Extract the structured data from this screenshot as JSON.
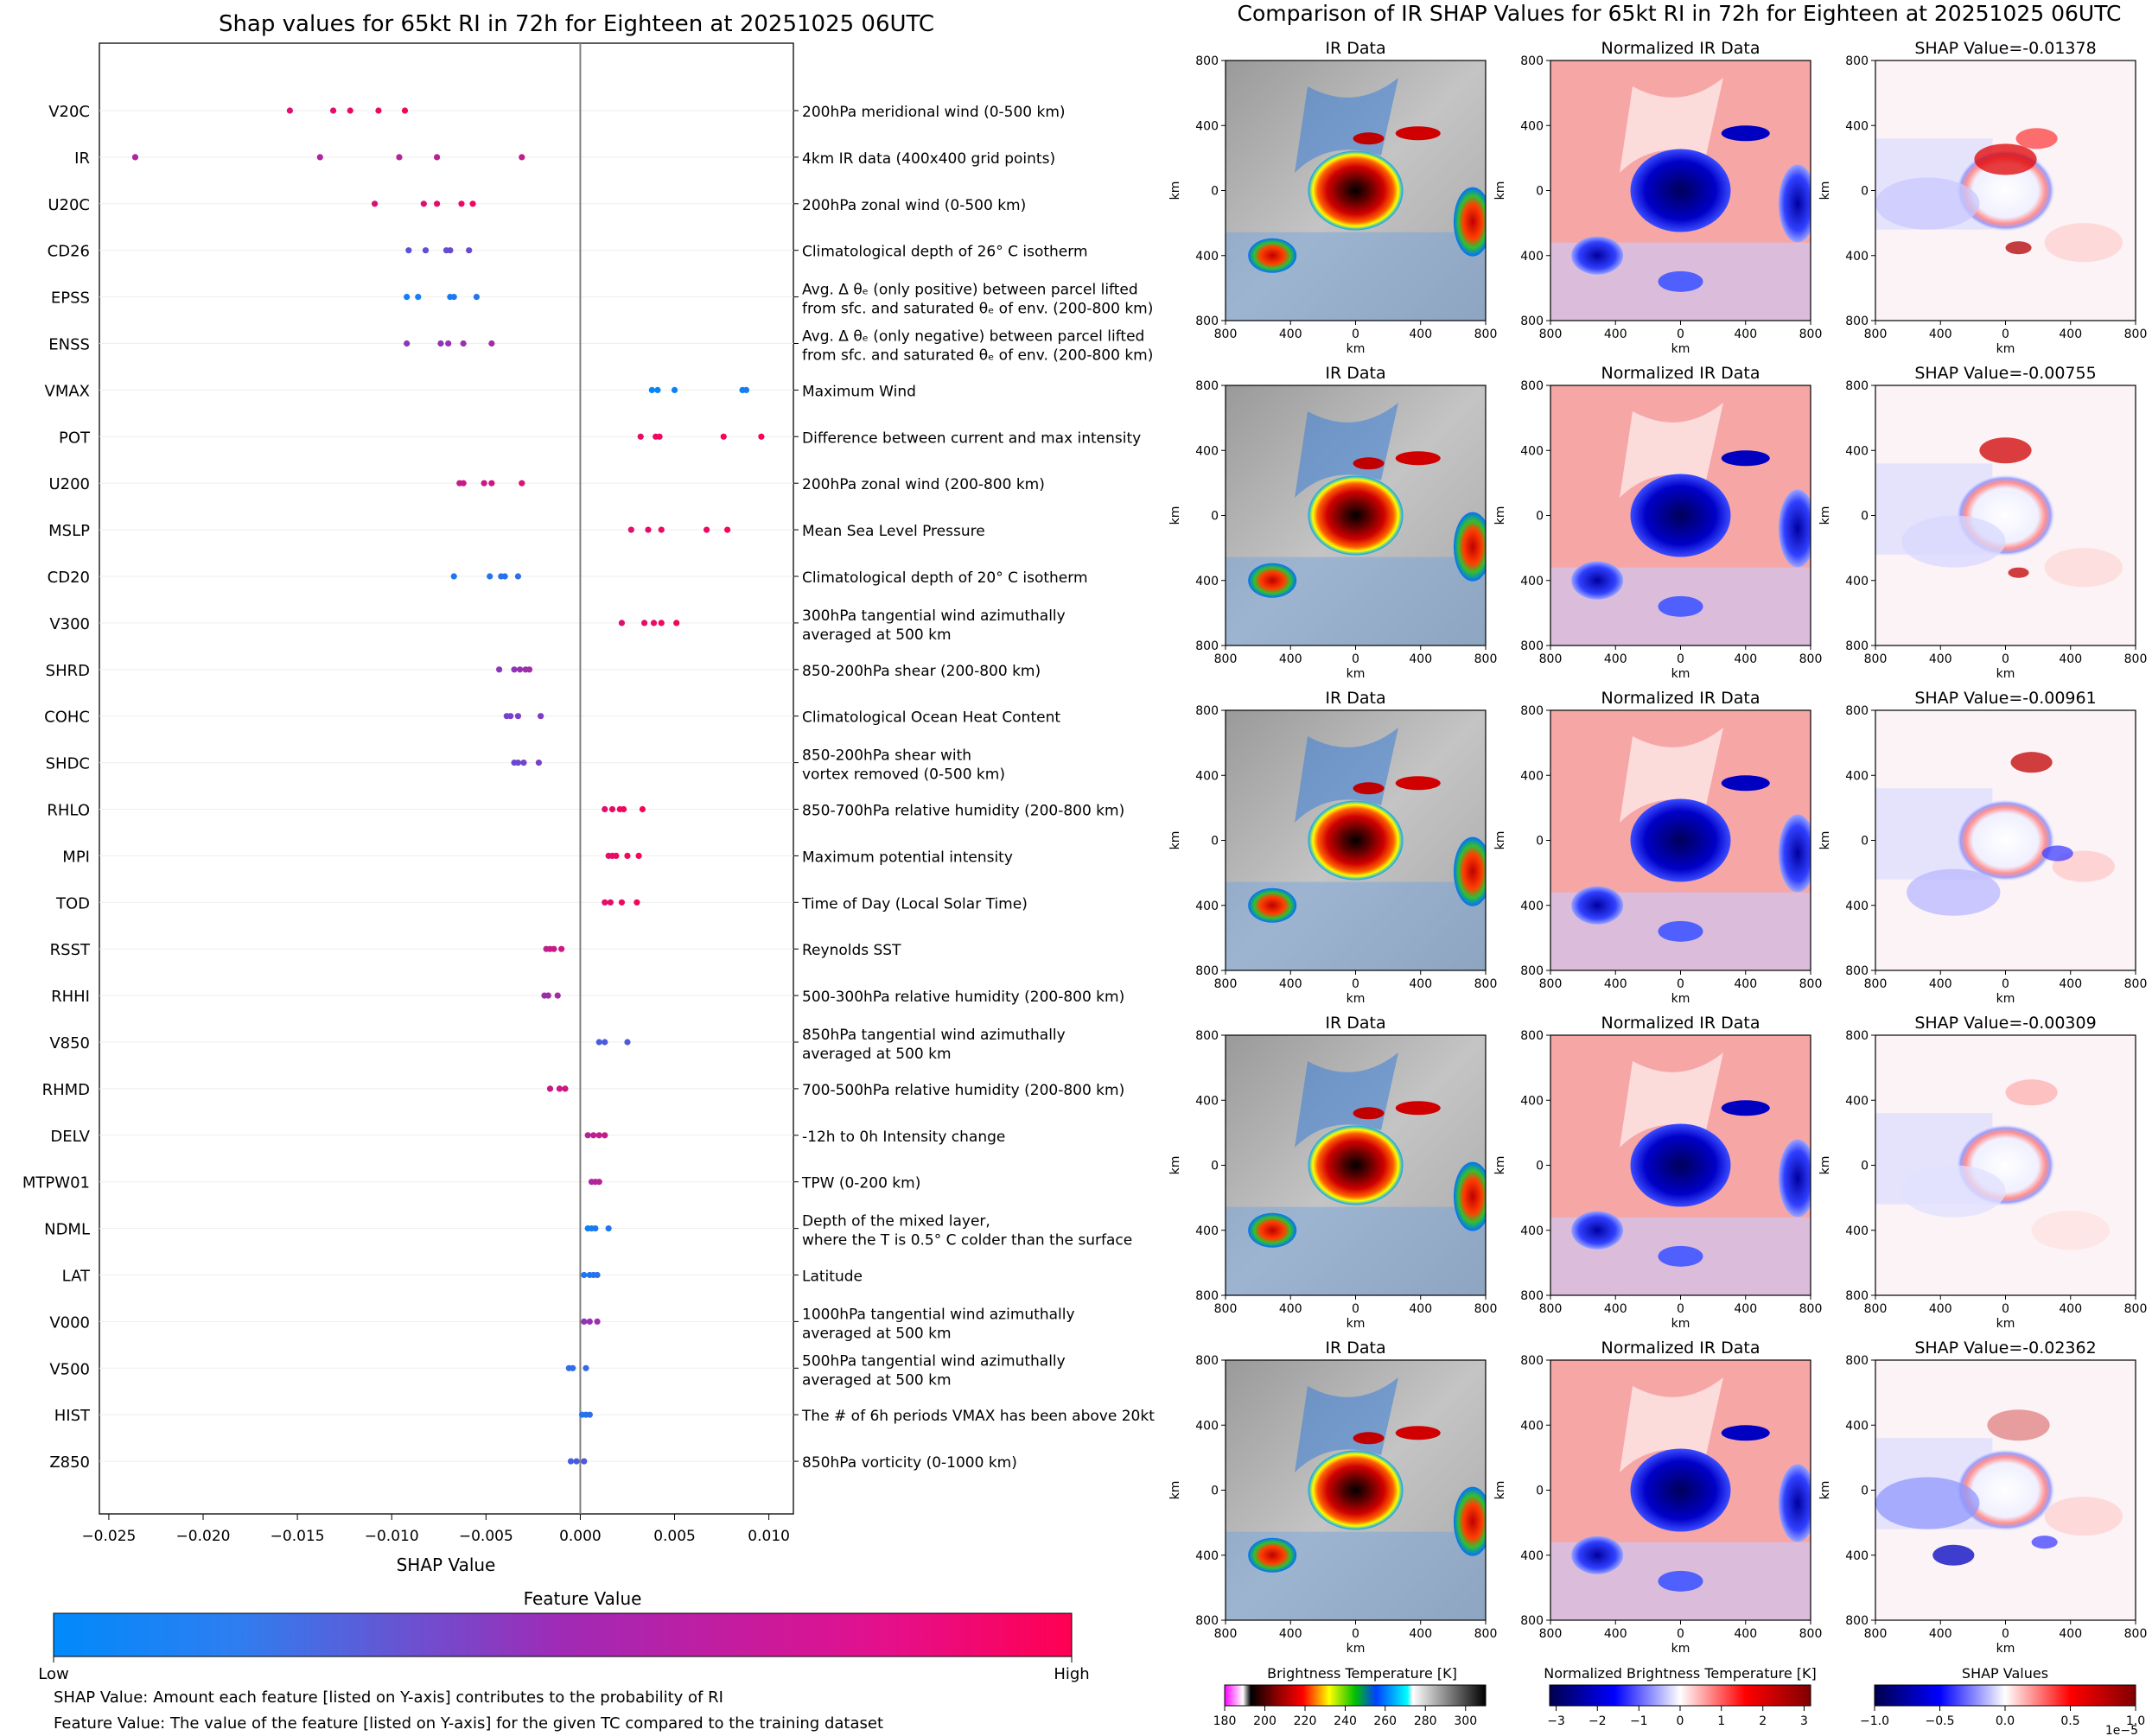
{
  "left_panel": {
    "title": "Shap values for 65kt RI in 72h for Eighteen at 20251025 06UTC",
    "xlabel": "SHAP Value",
    "colorbar_title": "Feature Value",
    "colorbar_low": "Low",
    "colorbar_high": "High",
    "note_shap": "SHAP Value: Amount each feature [listed on Y-axis] contributes to the probability of RI",
    "note_feature": "Feature Value: The value of the feature [listed on Y-axis] for the given TC compared to the training dataset",
    "colors": {
      "low": "#008afb",
      "mid": "#7b3ec9",
      "high": "#ff0052"
    }
  },
  "right_panel": {
    "title": "Comparison of IR SHAP Values for 65kt RI in 72h for Eighteen at 20251025 06UTC",
    "col_titles": [
      "IR Data",
      "Normalized IR Data"
    ],
    "rows": [
      {
        "shap_title": "SHAP Value=-0.01378"
      },
      {
        "shap_title": "SHAP Value=-0.00755"
      },
      {
        "shap_title": "SHAP Value=-0.00961"
      },
      {
        "shap_title": "SHAP Value=-0.00309"
      },
      {
        "shap_title": "SHAP Value=-0.02362"
      }
    ],
    "axis_label": "km",
    "ticks": [
      "800",
      "400",
      "0",
      "400",
      "800"
    ],
    "colorbars": [
      {
        "title": "Brightness Temperature [K]",
        "ticks": [
          "180",
          "200",
          "220",
          "240",
          "260",
          "280",
          "300"
        ]
      },
      {
        "title": "Normalized Brightness Temperature [K]",
        "ticks": [
          "−3",
          "−2",
          "−1",
          "0",
          "1",
          "2",
          "3"
        ]
      },
      {
        "title": "SHAP Values",
        "ticks": [
          "−1.0",
          "−0.5",
          "0.0",
          "0.5",
          "1.0"
        ],
        "offset": "1e−5"
      }
    ]
  },
  "chart_data": [
    {
      "type": "scatter",
      "title": "Shap values for 65kt RI in 72h for Eighteen at 20251025 06UTC",
      "xlabel": "SHAP Value",
      "xlim": [
        -0.0255,
        0.0113
      ],
      "xticks": [
        -0.025,
        -0.02,
        -0.015,
        -0.01,
        -0.005,
        0.0,
        0.005,
        0.01
      ],
      "xtick_labels": [
        "−0.025",
        "−0.020",
        "−0.015",
        "−0.010",
        "−0.005",
        "0.000",
        "0.005",
        "0.010"
      ],
      "features": [
        {
          "name": "V20C",
          "desc": [
            "200hPa meridional wind (0-500 km)"
          ],
          "color": 0.92,
          "values": [
            -0.0154,
            -0.0131,
            -0.0122,
            -0.0107,
            -0.0093
          ]
        },
        {
          "name": "IR",
          "desc": [
            "4km IR data (400x400 grid points)"
          ],
          "color": 0.72,
          "values": [
            -0.0236,
            -0.0138,
            -0.0096,
            -0.0076,
            -0.0031
          ]
        },
        {
          "name": "U20C",
          "desc": [
            "200hPa zonal wind (0-500 km)"
          ],
          "color": 0.9,
          "values": [
            -0.0109,
            -0.0083,
            -0.0076,
            -0.0063,
            -0.0057
          ]
        },
        {
          "name": "CD26",
          "desc": [
            "Climatological depth of 26° C isotherm"
          ],
          "color": 0.4,
          "values": [
            -0.0091,
            -0.0082,
            -0.0071,
            -0.0069,
            -0.0059
          ]
        },
        {
          "name": "EPSS",
          "desc": [
            "Avg. Δ θₑ (only positive) between parcel lifted",
            "from sfc. and saturated θₑ of env. (200-800 km)"
          ],
          "color": 0.1,
          "values": [
            -0.0092,
            -0.0086,
            -0.0069,
            -0.0067,
            -0.0055
          ]
        },
        {
          "name": "ENSS",
          "desc": [
            "Avg. Δ θₑ (only negative) between parcel lifted",
            "from sfc. and saturated θₑ of env. (200-800 km)"
          ],
          "color": 0.6,
          "values": [
            -0.0092,
            -0.0074,
            -0.007,
            -0.0062,
            -0.0047
          ]
        },
        {
          "name": "VMAX",
          "desc": [
            "Maximum Wind"
          ],
          "color": 0.05,
          "values": [
            0.0038,
            0.0041,
            0.005,
            0.0086,
            0.0088
          ]
        },
        {
          "name": "POT",
          "desc": [
            "Difference between current and max intensity"
          ],
          "color": 0.95,
          "values": [
            0.0032,
            0.004,
            0.0042,
            0.0076,
            0.0096
          ]
        },
        {
          "name": "U200",
          "desc": [
            "200hPa zonal wind (200-800 km)"
          ],
          "color": 0.8,
          "values": [
            -0.0064,
            -0.0062,
            -0.0051,
            -0.0047,
            -0.0031
          ]
        },
        {
          "name": "MSLP",
          "desc": [
            "Mean Sea Level Pressure"
          ],
          "color": 0.93,
          "values": [
            0.0027,
            0.0036,
            0.0043,
            0.0067,
            0.0078
          ]
        },
        {
          "name": "CD20",
          "desc": [
            "Climatological depth of 20° C isotherm"
          ],
          "color": 0.15,
          "values": [
            -0.0067,
            -0.0048,
            -0.0042,
            -0.004,
            -0.0033
          ]
        },
        {
          "name": "V300",
          "desc": [
            "300hPa tangential wind azimuthally",
            "averaged at 500 km"
          ],
          "color": 0.92,
          "values": [
            0.0022,
            0.0034,
            0.0039,
            0.0043,
            0.0051
          ]
        },
        {
          "name": "SHRD",
          "desc": [
            "850-200hPa shear (200-800 km)"
          ],
          "color": 0.6,
          "values": [
            -0.0043,
            -0.0035,
            -0.0032,
            -0.0029,
            -0.0027
          ]
        },
        {
          "name": "COHC",
          "desc": [
            "Climatological Ocean Heat Content"
          ],
          "color": 0.5,
          "values": [
            -0.0039,
            -0.0037,
            -0.0033,
            -0.0021
          ]
        },
        {
          "name": "SHDC",
          "desc": [
            "850-200hPa shear with",
            "vortex removed (0-500 km)"
          ],
          "color": 0.45,
          "values": [
            -0.0035,
            -0.0033,
            -0.003,
            -0.0022
          ]
        },
        {
          "name": "RHLO",
          "desc": [
            "850-700hPa relative humidity (200-800 km)"
          ],
          "color": 0.93,
          "values": [
            0.0013,
            0.0017,
            0.0021,
            0.0023,
            0.0033
          ]
        },
        {
          "name": "MPI",
          "desc": [
            "Maximum potential intensity"
          ],
          "color": 0.93,
          "values": [
            0.0015,
            0.0017,
            0.0019,
            0.0025,
            0.0031
          ]
        },
        {
          "name": "TOD",
          "desc": [
            "Time of Day (Local Solar Time)"
          ],
          "color": 0.93,
          "values": [
            0.0013,
            0.0016,
            0.0022,
            0.003
          ]
        },
        {
          "name": "RSST",
          "desc": [
            "Reynolds SST"
          ],
          "color": 0.78,
          "values": [
            -0.0018,
            -0.0016,
            -0.0014,
            -0.001
          ]
        },
        {
          "name": "RHHI",
          "desc": [
            "500-300hPa relative humidity (200-800 km)"
          ],
          "color": 0.65,
          "values": [
            -0.0019,
            -0.0017,
            -0.0012
          ]
        },
        {
          "name": "V850",
          "desc": [
            "850hPa tangential wind azimuthally",
            "averaged at 500 km"
          ],
          "color": 0.3,
          "values": [
            0.001,
            0.0013,
            0.0025
          ]
        },
        {
          "name": "RHMD",
          "desc": [
            "700-500hPa relative humidity (200-800 km)"
          ],
          "color": 0.8,
          "values": [
            -0.0016,
            -0.0011,
            -0.0008
          ]
        },
        {
          "name": "DELV",
          "desc": [
            "-12h to 0h Intensity change"
          ],
          "color": 0.75,
          "values": [
            0.0004,
            0.0007,
            0.001,
            0.0013
          ]
        },
        {
          "name": "MTPW01",
          "desc": [
            "TPW (0-200 km)"
          ],
          "color": 0.7,
          "values": [
            0.0006,
            0.0008,
            0.001
          ]
        },
        {
          "name": "NDML",
          "desc": [
            "Depth of the mixed layer,",
            "where the T is 0.5° C colder than the surface"
          ],
          "color": 0.1,
          "values": [
            0.0004,
            0.0006,
            0.0008,
            0.0015
          ]
        },
        {
          "name": "LAT",
          "desc": [
            "Latitude"
          ],
          "color": 0.15,
          "values": [
            0.0002,
            0.0005,
            0.0007,
            0.0009
          ]
        },
        {
          "name": "V000",
          "desc": [
            "1000hPa tangential wind azimuthally",
            "averaged at 500 km"
          ],
          "color": 0.6,
          "values": [
            0.0002,
            0.0005,
            0.0009
          ]
        },
        {
          "name": "V500",
          "desc": [
            "500hPa tangential wind azimuthally",
            "averaged at 500 km"
          ],
          "color": 0.2,
          "values": [
            -0.0006,
            -0.0004,
            0.0003
          ]
        },
        {
          "name": "HIST",
          "desc": [
            "The # of 6h periods VMAX has been above 20kt"
          ],
          "color": 0.15,
          "values": [
            0.0001,
            0.0003,
            0.0005
          ]
        },
        {
          "name": "Z850",
          "desc": [
            "850hPa vorticity (0-1000 km)"
          ],
          "color": 0.3,
          "values": [
            -0.0005,
            -0.0002,
            0.0002
          ]
        }
      ]
    },
    {
      "type": "heatmap",
      "title": "Comparison of IR SHAP Values for 65kt RI in 72h for Eighteen at 20251025 06UTC",
      "x_range_km": [
        -800,
        800
      ],
      "y_range_km": [
        -800,
        800
      ],
      "panels_per_row": [
        "IR Data",
        "Normalized IR Data",
        "SHAP Value"
      ],
      "shap_values": [
        -0.01378,
        -0.00755,
        -0.00961,
        -0.00309,
        -0.02362
      ]
    }
  ]
}
